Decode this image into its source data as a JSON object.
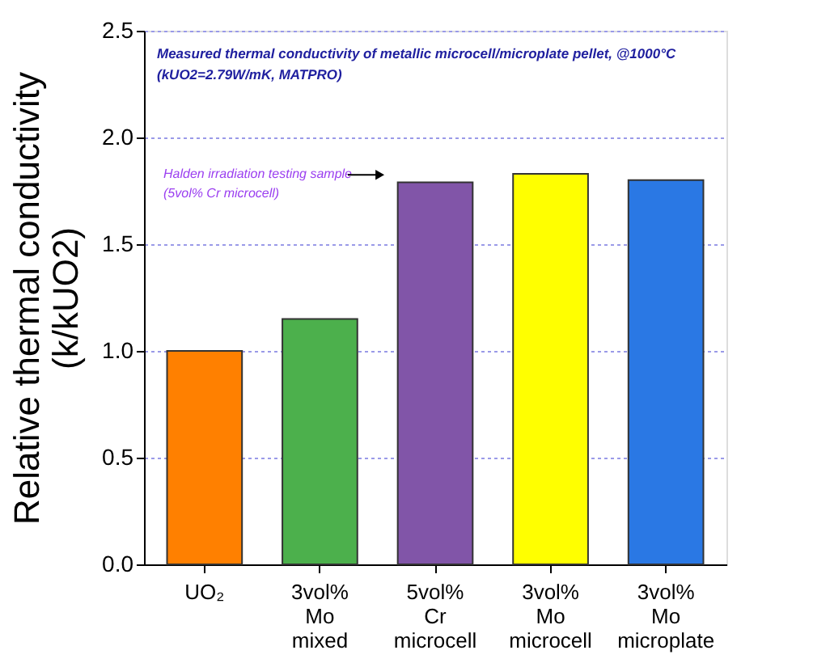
{
  "chart_data": {
    "type": "bar",
    "ylabel": "Relative thermal conductivity\n(k/kUO2)",
    "categories": [
      "UO₂",
      "3vol%\nMo\nmixed",
      "5vol%\nCr\nmicrocell",
      "3vol%\nMo\nmicrocell",
      "3vol%\nMo\nmicroplate"
    ],
    "values": [
      1.0,
      1.15,
      1.79,
      1.83,
      1.8
    ],
    "colors": [
      "#ff8000",
      "#4cb04c",
      "#8155a8",
      "#ffff00",
      "#2a78e4"
    ],
    "ylim": [
      0,
      2.5
    ],
    "yticks": [
      {
        "value": 0,
        "label": "0.0"
      },
      {
        "value": 0.5,
        "label": "0.5"
      },
      {
        "value": 1,
        "label": "1.0"
      },
      {
        "value": 1.5,
        "label": "1.5"
      },
      {
        "value": 2,
        "label": "2.0"
      },
      {
        "value": 2.5,
        "label": "2.5"
      }
    ],
    "grid": "y",
    "annotations": [
      "Measured thermal conductivity of metallic microcell/microplate pellet, @1000°C\n(kUO2=2.79W/mK, MATPRO)",
      "Halden irradiation testing sample\n(5vol% Cr microcell)"
    ]
  }
}
